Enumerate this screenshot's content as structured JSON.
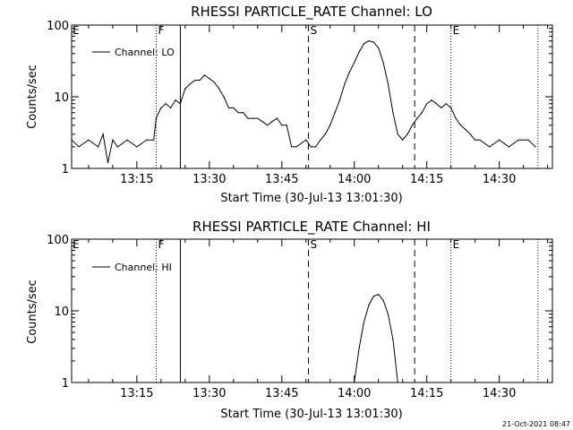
{
  "footer_timestamp": "21-Oct-2021 08:47",
  "chart_data": [
    {
      "type": "line",
      "title": "RHESSI PARTICLE_RATE Channel: LO",
      "xlabel": "Start Time (30-Jul-13 13:01:30)",
      "ylabel": "Counts/sec",
      "y_scale": "log",
      "ylim": [
        1,
        100
      ],
      "xlim": [
        "13:01:30",
        "14:41:00"
      ],
      "x_ticks": [
        "13:15",
        "13:30",
        "13:45",
        "14:00",
        "14:15",
        "14:30"
      ],
      "y_ticks": [
        "1",
        "10",
        "100"
      ],
      "grid": false,
      "legend": {
        "position": "top-left",
        "entries": [
          "Channel: LO"
        ]
      },
      "markers": [
        {
          "time": "13:19:00",
          "label": "F",
          "style": "dotted"
        },
        {
          "time": "13:24:00",
          "label": "",
          "style": "solid"
        },
        {
          "time": "13:50:30",
          "label": "S",
          "style": "dashed"
        },
        {
          "time": "14:12:30",
          "label": "",
          "style": "dashed"
        },
        {
          "time": "14:20:00",
          "label": "E",
          "style": "dotted"
        },
        {
          "time": "14:38:00",
          "label": "",
          "style": "dotted"
        }
      ],
      "corner_labels": [
        "E"
      ],
      "series": [
        {
          "name": "Channel: LO",
          "x": [
            "13:01:30",
            "13:03:00",
            "13:05:00",
            "13:07:00",
            "13:08:00",
            "13:09:00",
            "13:10:00",
            "13:11:00",
            "13:13:00",
            "13:15:00",
            "13:17:00",
            "13:18:30",
            "13:19:00",
            "13:20:00",
            "13:21:00",
            "13:22:00",
            "13:23:00",
            "13:24:00",
            "13:25:00",
            "13:26:00",
            "13:27:00",
            "13:28:00",
            "13:29:00",
            "13:30:00",
            "13:31:00",
            "13:32:00",
            "13:33:00",
            "13:34:00",
            "13:35:00",
            "13:36:00",
            "13:37:00",
            "13:38:00",
            "13:39:00",
            "13:40:00",
            "13:41:00",
            "13:42:00",
            "13:43:00",
            "13:44:00",
            "13:45:00",
            "13:46:00",
            "13:47:00",
            "13:48:00",
            "13:50:00",
            "13:51:00",
            "13:52:00",
            "13:53:00",
            "13:54:00",
            "13:55:00",
            "13:56:00",
            "13:57:00",
            "13:58:00",
            "13:59:00",
            "14:00:00",
            "14:01:00",
            "14:02:00",
            "14:03:00",
            "14:04:00",
            "14:05:00",
            "14:06:00",
            "14:07:00",
            "14:08:00",
            "14:09:00",
            "14:10:00",
            "14:11:00",
            "14:12:00",
            "14:13:00",
            "14:14:00",
            "14:15:00",
            "14:16:00",
            "14:17:00",
            "14:18:00",
            "14:19:00",
            "14:20:00",
            "14:21:00",
            "14:22:00",
            "14:23:00",
            "14:24:00",
            "14:25:00",
            "14:26:00",
            "14:28:00",
            "14:30:00",
            "14:32:00",
            "14:34:00",
            "14:36:00",
            "14:37:30"
          ],
          "values": [
            2.5,
            2,
            2.5,
            2,
            3,
            1.2,
            2.5,
            2,
            2.5,
            2,
            2.5,
            2.5,
            5,
            7,
            8,
            7,
            9,
            8,
            13,
            15,
            17,
            17,
            20,
            18,
            16,
            13,
            10,
            7,
            7,
            6,
            6,
            5,
            5,
            5,
            4.5,
            4,
            4.5,
            5,
            4,
            4,
            2,
            2,
            2.5,
            2,
            2,
            2.5,
            3,
            4,
            6,
            9,
            15,
            22,
            30,
            42,
            55,
            60,
            58,
            48,
            30,
            15,
            6,
            3,
            2.5,
            3,
            4,
            5,
            6,
            8,
            9,
            8,
            7,
            8,
            7,
            5,
            4,
            3.5,
            3,
            2.5,
            2.5,
            2,
            2.5,
            2,
            2.5,
            2.5,
            2
          ]
        }
      ]
    },
    {
      "type": "line",
      "title": "RHESSI PARTICLE_RATE Channel: HI",
      "xlabel": "Start Time (30-Jul-13 13:01:30)",
      "ylabel": "Counts/sec",
      "y_scale": "log",
      "ylim": [
        1,
        100
      ],
      "xlim": [
        "13:01:30",
        "14:41:00"
      ],
      "x_ticks": [
        "13:15",
        "13:30",
        "13:45",
        "14:00",
        "14:15",
        "14:30"
      ],
      "y_ticks": [
        "1",
        "10",
        "100"
      ],
      "grid": false,
      "legend": {
        "position": "top-left",
        "entries": [
          "Channel: HI"
        ]
      },
      "markers": [
        {
          "time": "13:19:00",
          "label": "F",
          "style": "dotted"
        },
        {
          "time": "13:24:00",
          "label": "",
          "style": "solid"
        },
        {
          "time": "13:50:30",
          "label": "S",
          "style": "dashed"
        },
        {
          "time": "14:12:30",
          "label": "",
          "style": "dashed"
        },
        {
          "time": "14:20:00",
          "label": "E",
          "style": "dotted"
        },
        {
          "time": "14:38:00",
          "label": "",
          "style": "dotted"
        }
      ],
      "corner_labels": [
        "E"
      ],
      "series": [
        {
          "name": "Channel: HI",
          "x": [
            "14:00:00",
            "14:01:00",
            "14:02:00",
            "14:03:00",
            "14:04:00",
            "14:05:00",
            "14:06:00",
            "14:07:00",
            "14:08:00",
            "14:09:00"
          ],
          "values": [
            1,
            3,
            7,
            12,
            16,
            17,
            14,
            9,
            4,
            1
          ]
        }
      ]
    }
  ]
}
